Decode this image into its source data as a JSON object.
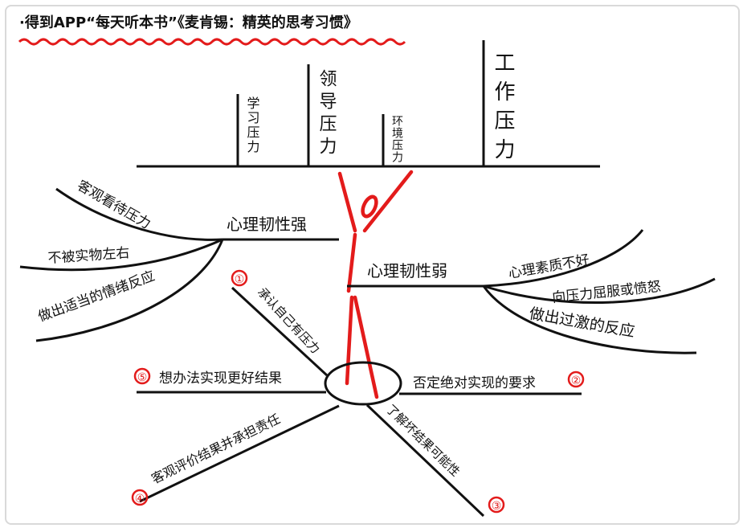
{
  "header": {
    "title": "·得到APP“每天听本书”《麦肯锡：精英的思考习惯》"
  },
  "stressors": [
    {
      "label": "学习压力"
    },
    {
      "label": "领导压力"
    },
    {
      "label": "环境压力"
    },
    {
      "label": "工作压力"
    }
  ],
  "resilience_strong": {
    "label": "心理韧性强",
    "branches": [
      "客观看待压力",
      "不被实物左右",
      "做出适当的情绪反应"
    ]
  },
  "resilience_weak": {
    "label": "心理韧性弱",
    "branches": [
      "心理素质不好",
      "向压力屈服或愤怒",
      "做出过激的反应"
    ]
  },
  "steps": [
    {
      "num": "①",
      "label": "承认自己有压力"
    },
    {
      "num": "②",
      "label": "否定绝对实现的要求"
    },
    {
      "num": "③",
      "label": "了解坏结果可能性"
    },
    {
      "num": "④",
      "label": "客观评价结果并承担责任"
    },
    {
      "num": "⑤",
      "label": "想办法实现更好结果"
    }
  ],
  "colors": {
    "ink": "#111111",
    "accent": "#e31b1b",
    "frame": "#d9d9d9"
  }
}
